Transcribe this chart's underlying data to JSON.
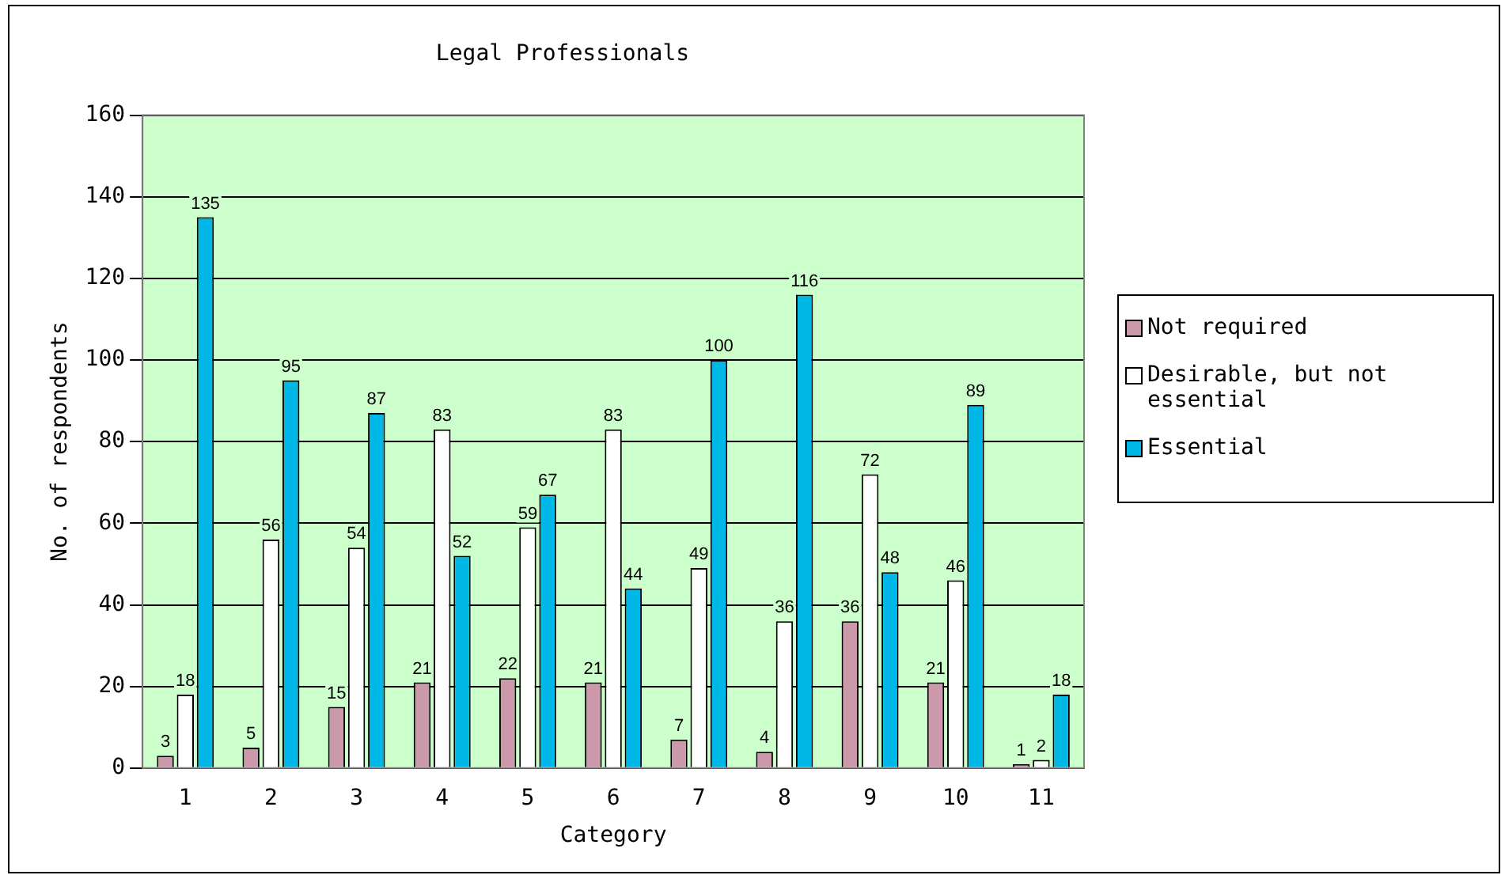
{
  "chart_data": {
    "type": "bar",
    "title": "Legal Professionals",
    "xlabel": "Category",
    "ylabel": "No. of respondents",
    "categories": [
      "1",
      "2",
      "3",
      "4",
      "5",
      "6",
      "7",
      "8",
      "9",
      "10",
      "11"
    ],
    "series": [
      {
        "name": "Not required",
        "color": "#cc99aa",
        "values": [
          3,
          5,
          15,
          21,
          22,
          21,
          7,
          4,
          36,
          21,
          1
        ]
      },
      {
        "name": "Desirable, but not essential",
        "color": "#ffffff",
        "values": [
          18,
          56,
          54,
          83,
          59,
          83,
          49,
          36,
          72,
          46,
          2
        ]
      },
      {
        "name": "Essential",
        "color": "#00b8e8",
        "values": [
          135,
          95,
          87,
          52,
          67,
          44,
          100,
          116,
          48,
          89,
          18
        ]
      }
    ],
    "ylim": [
      0,
      160
    ],
    "yticks": [
      0,
      20,
      40,
      60,
      80,
      100,
      120,
      140,
      160
    ],
    "grid": "y",
    "legend": "right",
    "data_labels": true
  }
}
